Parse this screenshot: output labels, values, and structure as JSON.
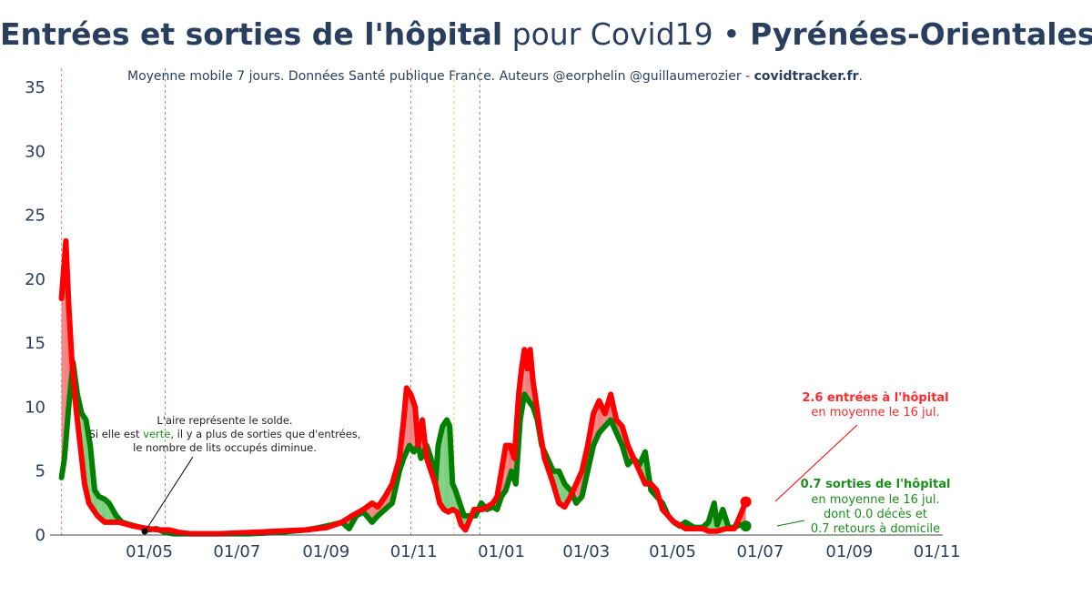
{
  "title": {
    "part1": "Entrées et sorties de l'hôpital",
    "part2": " pour Covid19 • ",
    "part3": "Pyrénées-Orientales"
  },
  "subtitle": {
    "text": "Moyenne mobile 7 jours. Données Santé publique France. Auteurs @eorphelin @guillaumerozier - ",
    "site": "covidtracker.fr",
    "end": "."
  },
  "colors": {
    "entrees": "#ff0000",
    "sorties": "#007f00",
    "fill_red": "#f08080",
    "fill_green": "#7ccd7c",
    "text": "#2a3f5f"
  },
  "annotations": {
    "center": {
      "line1": "L'aire représente le solde.",
      "line2_pre": "Si elle est ",
      "line2_green": "verte",
      "line2_post": ", il y a plus de sorties que d'entrées,",
      "line3": "le nombre de lits occupés diminue."
    },
    "entrees": {
      "line1": "2.6 entrées à l'hôpital",
      "line2": "en moyenne le 16 jul."
    },
    "sorties": {
      "line1": "0.7 sorties de l'hôpital",
      "line2": "en moyenne le 16 jul.",
      "line3": "dont 0.0 décès et",
      "line4": "0.7 retours à domicile"
    }
  },
  "chart_data": {
    "type": "line",
    "x_ticks": [
      "01/05",
      "01/07",
      "01/09",
      "01/11",
      "01/01",
      "01/03",
      "01/05",
      "01/07",
      "01/09",
      "01/11"
    ],
    "x_tick_days": [
      31,
      92,
      154,
      215,
      276,
      335,
      395,
      456,
      518,
      579
    ],
    "y_ticks": [
      0,
      5,
      10,
      15,
      20,
      25,
      30,
      35
    ],
    "ylim": [
      0,
      36
    ],
    "xlim": [
      -38,
      583
    ],
    "x_origin": "2020-03-31",
    "vlines": [
      {
        "day": -30,
        "color": "#e87c7c"
      },
      {
        "day": 42,
        "color": "#5cb85c"
      },
      {
        "day": 213,
        "color": "#e87c7c"
      },
      {
        "day": 243,
        "color": "#e8d070"
      },
      {
        "day": 261,
        "color": "#5cb85c"
      }
    ],
    "series": [
      {
        "name": "entrées",
        "points": [
          [
            -30,
            18.5
          ],
          [
            -27,
            23
          ],
          [
            -25,
            18
          ],
          [
            -23,
            14
          ],
          [
            -20,
            10
          ],
          [
            -17,
            7
          ],
          [
            -14,
            4
          ],
          [
            -11,
            2.5
          ],
          [
            -8,
            2
          ],
          [
            -5,
            1.5
          ],
          [
            0,
            1
          ],
          [
            10,
            1
          ],
          [
            20,
            0.7
          ],
          [
            30,
            0.5
          ],
          [
            38,
            0.4
          ],
          [
            45,
            0.4
          ],
          [
            52,
            0.2
          ],
          [
            60,
            0.1
          ],
          [
            80,
            0.1
          ],
          [
            100,
            0.2
          ],
          [
            120,
            0.3
          ],
          [
            140,
            0.4
          ],
          [
            155,
            0.6
          ],
          [
            165,
            1
          ],
          [
            172,
            1.5
          ],
          [
            180,
            2
          ],
          [
            186,
            2.5
          ],
          [
            190,
            2.2
          ],
          [
            195,
            3
          ],
          [
            200,
            4
          ],
          [
            205,
            6
          ],
          [
            208,
            9
          ],
          [
            210,
            11.5
          ],
          [
            213,
            11
          ],
          [
            216,
            10
          ],
          [
            218,
            7
          ],
          [
            221,
            9
          ],
          [
            224,
            6
          ],
          [
            227,
            5
          ],
          [
            230,
            4
          ],
          [
            233,
            2.5
          ],
          [
            236,
            2
          ],
          [
            239,
            1.8
          ],
          [
            242,
            2
          ],
          [
            245,
            1.8
          ],
          [
            248,
            0.8
          ],
          [
            251,
            0.4
          ],
          [
            254,
            1.2
          ],
          [
            257,
            2
          ],
          [
            260,
            2
          ],
          [
            263,
            2
          ],
          [
            266,
            2.2
          ],
          [
            270,
            2.5
          ],
          [
            273,
            3
          ],
          [
            276,
            5
          ],
          [
            279,
            7
          ],
          [
            282,
            7
          ],
          [
            285,
            6
          ],
          [
            288,
            11
          ],
          [
            290,
            13
          ],
          [
            292,
            14.5
          ],
          [
            294,
            13
          ],
          [
            296,
            14.5
          ],
          [
            298,
            12
          ],
          [
            300,
            10.5
          ],
          [
            303,
            8
          ],
          [
            306,
            6
          ],
          [
            309,
            5
          ],
          [
            312,
            4
          ],
          [
            316,
            2.5
          ],
          [
            320,
            2.2
          ],
          [
            324,
            3
          ],
          [
            328,
            4
          ],
          [
            332,
            5
          ],
          [
            336,
            7
          ],
          [
            340,
            9.5
          ],
          [
            344,
            10.5
          ],
          [
            348,
            9.5
          ],
          [
            352,
            11
          ],
          [
            356,
            9
          ],
          [
            360,
            8.5
          ],
          [
            364,
            7
          ],
          [
            368,
            6
          ],
          [
            372,
            5
          ],
          [
            376,
            4
          ],
          [
            380,
            4
          ],
          [
            384,
            3.5
          ],
          [
            388,
            2
          ],
          [
            392,
            1.5
          ],
          [
            396,
            1
          ],
          [
            400,
            0.8
          ],
          [
            404,
            0.5
          ],
          [
            410,
            0.5
          ],
          [
            416,
            0.5
          ],
          [
            420,
            0.3
          ],
          [
            426,
            0.3
          ],
          [
            432,
            0.5
          ],
          [
            438,
            0.5
          ],
          [
            442,
            1.5
          ],
          [
            446,
            2.6
          ]
        ]
      },
      {
        "name": "sorties",
        "points": [
          [
            -30,
            4.5
          ],
          [
            -28,
            6
          ],
          [
            -25,
            10
          ],
          [
            -22,
            13.5
          ],
          [
            -19,
            11
          ],
          [
            -16,
            9.5
          ],
          [
            -13,
            9
          ],
          [
            -10,
            7
          ],
          [
            -7,
            3.5
          ],
          [
            -4,
            3
          ],
          [
            0,
            2.8
          ],
          [
            3,
            2.5
          ],
          [
            8,
            1.5
          ],
          [
            12,
            1
          ],
          [
            18,
            0.8
          ],
          [
            25,
            0.6
          ],
          [
            30,
            0.4
          ],
          [
            36,
            0.5
          ],
          [
            42,
            0.2
          ],
          [
            48,
            0.1
          ],
          [
            60,
            0.1
          ],
          [
            80,
            0.1
          ],
          [
            100,
            0.1
          ],
          [
            120,
            0.2
          ],
          [
            140,
            0.4
          ],
          [
            150,
            0.6
          ],
          [
            158,
            0.8
          ],
          [
            165,
            1
          ],
          [
            170,
            0.5
          ],
          [
            175,
            1.5
          ],
          [
            180,
            1.8
          ],
          [
            186,
            1
          ],
          [
            190,
            1.5
          ],
          [
            195,
            2
          ],
          [
            200,
            2.5
          ],
          [
            205,
            5
          ],
          [
            208,
            6
          ],
          [
            212,
            7
          ],
          [
            215,
            6.5
          ],
          [
            218,
            7
          ],
          [
            220,
            6
          ],
          [
            224,
            7
          ],
          [
            227,
            6
          ],
          [
            230,
            4
          ],
          [
            232,
            7
          ],
          [
            235,
            8.5
          ],
          [
            238,
            9
          ],
          [
            240,
            8.5
          ],
          [
            242,
            4
          ],
          [
            244,
            3.5
          ],
          [
            247,
            2.5
          ],
          [
            250,
            1.5
          ],
          [
            252,
            1.5
          ],
          [
            255,
            1.5
          ],
          [
            258,
            1.5
          ],
          [
            262,
            2.5
          ],
          [
            266,
            2
          ],
          [
            270,
            2.2
          ],
          [
            273,
            2
          ],
          [
            276,
            3
          ],
          [
            279,
            3.5
          ],
          [
            283,
            5
          ],
          [
            286,
            4
          ],
          [
            289,
            9
          ],
          [
            292,
            11
          ],
          [
            295,
            10.5
          ],
          [
            298,
            10
          ],
          [
            301,
            9
          ],
          [
            304,
            7
          ],
          [
            308,
            6
          ],
          [
            312,
            5
          ],
          [
            316,
            5
          ],
          [
            320,
            4
          ],
          [
            324,
            3.5
          ],
          [
            328,
            2.5
          ],
          [
            332,
            3
          ],
          [
            336,
            5
          ],
          [
            340,
            7
          ],
          [
            344,
            8
          ],
          [
            348,
            8.5
          ],
          [
            352,
            9
          ],
          [
            356,
            8
          ],
          [
            360,
            7
          ],
          [
            364,
            5.5
          ],
          [
            368,
            6
          ],
          [
            372,
            5.5
          ],
          [
            376,
            6.5
          ],
          [
            380,
            3.5
          ],
          [
            384,
            3
          ],
          [
            388,
            2.5
          ],
          [
            392,
            1.5
          ],
          [
            396,
            1
          ],
          [
            400,
            0.7
          ],
          [
            404,
            1
          ],
          [
            410,
            0.6
          ],
          [
            416,
            0.6
          ],
          [
            420,
            1
          ],
          [
            424,
            2.5
          ],
          [
            426,
            0.8
          ],
          [
            430,
            2
          ],
          [
            434,
            0.6
          ],
          [
            438,
            0.6
          ],
          [
            442,
            0.8
          ],
          [
            446,
            0.7
          ]
        ]
      }
    ]
  }
}
